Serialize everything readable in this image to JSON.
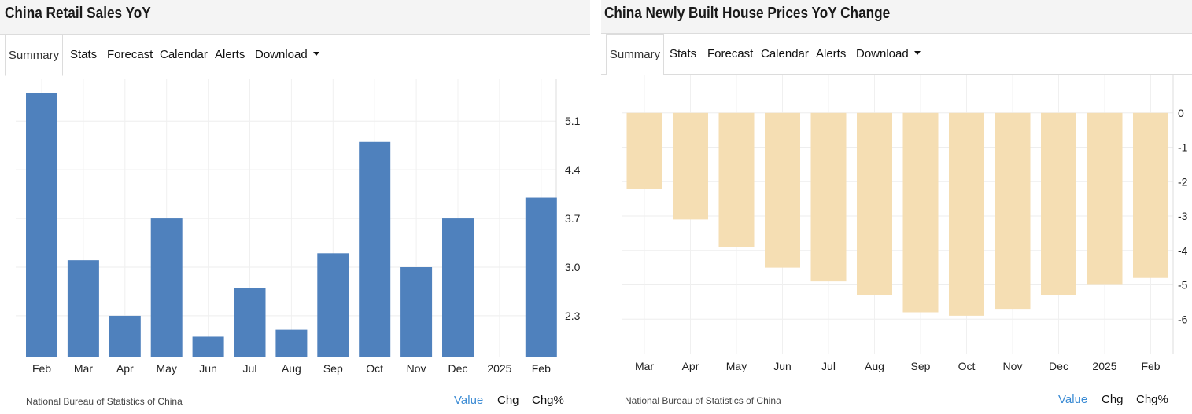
{
  "left": {
    "title": "China Retail Sales YoY",
    "tabs": [
      "Summary",
      "Stats",
      "Forecast",
      "Calendar",
      "Alerts",
      "Download"
    ],
    "active_tab": "Summary",
    "source": "National Bureau of Statistics of China",
    "toggles": [
      "Value",
      "Chg",
      "Chg%"
    ],
    "selected_toggle": "Value",
    "bar_color": "#4f81bd"
  },
  "right": {
    "title": "China Newly Built House Prices YoY Change",
    "tabs": [
      "Summary",
      "Stats",
      "Forecast",
      "Calendar",
      "Alerts",
      "Download"
    ],
    "active_tab": "Summary",
    "source": "National Bureau of Statistics of China",
    "toggles": [
      "Value",
      "Chg",
      "Chg%"
    ],
    "selected_toggle": "Value",
    "bar_color": "#f5deb3"
  },
  "chart_data": [
    {
      "type": "bar",
      "title": "China Retail Sales YoY",
      "xlabel": "",
      "ylabel": "",
      "categories": [
        "Feb",
        "Mar",
        "Apr",
        "May",
        "Jun",
        "Jul",
        "Aug",
        "Sep",
        "Oct",
        "Nov",
        "Dec",
        "2025",
        "Feb"
      ],
      "values": [
        5.5,
        3.1,
        2.3,
        3.7,
        2.0,
        2.7,
        2.1,
        3.2,
        4.8,
        3.0,
        3.7,
        null,
        4.0
      ],
      "yticks": [
        2.3,
        3.0,
        3.7,
        4.4,
        5.1
      ],
      "ylim": [
        1.7,
        5.6
      ],
      "axis_side": "right",
      "grid": true,
      "legend": "none"
    },
    {
      "type": "bar",
      "title": "China Newly Built House Prices YoY Change",
      "xlabel": "",
      "ylabel": "",
      "categories": [
        "Mar",
        "Apr",
        "May",
        "Jun",
        "Jul",
        "Aug",
        "Sep",
        "Oct",
        "Nov",
        "Dec",
        "2025",
        "Feb"
      ],
      "values": [
        -2.2,
        -3.1,
        -3.9,
        -4.5,
        -4.9,
        -5.3,
        -5.8,
        -5.9,
        -5.7,
        -5.3,
        -5.0,
        -4.8
      ],
      "yticks": [
        0,
        -1,
        -2,
        -3,
        -4,
        -5,
        -6
      ],
      "ylim": [
        -7.0,
        1.0
      ],
      "axis_side": "right",
      "grid": true,
      "legend": "none"
    }
  ]
}
